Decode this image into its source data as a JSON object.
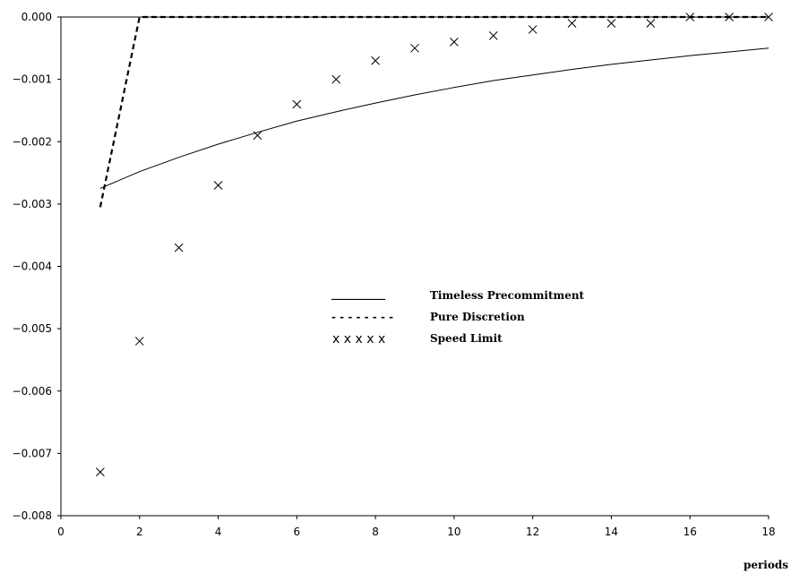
{
  "chart_data": {
    "type": "line",
    "title": "",
    "xlabel": "periods",
    "ylabel": "",
    "xlim": [
      0,
      18
    ],
    "ylim": [
      -0.008,
      0.0
    ],
    "x_ticks": [
      0,
      2,
      4,
      6,
      8,
      10,
      12,
      14,
      16,
      18
    ],
    "x_tick_labels": [
      "0",
      "2",
      "4",
      "6",
      "8",
      "10",
      "12",
      "14",
      "16",
      "18"
    ],
    "y_ticks": [
      0.0,
      -0.001,
      -0.002,
      -0.003,
      -0.004,
      -0.005,
      -0.006,
      -0.007,
      -0.008
    ],
    "y_tick_labels": [
      "0.000",
      "−0.001",
      "−0.002",
      "−0.003",
      "−0.004",
      "−0.005",
      "−0.006",
      "−0.007",
      "−0.008"
    ],
    "grid": false,
    "legend_position": "center",
    "series": [
      {
        "name": "Timeless Precommitment",
        "style": "solid",
        "x": [
          1,
          2,
          3,
          4,
          5,
          6,
          7,
          8,
          9,
          10,
          11,
          12,
          13,
          14,
          15,
          16,
          17,
          18
        ],
        "y": [
          -0.00275,
          -0.00248,
          -0.00225,
          -0.00204,
          -0.00185,
          -0.00167,
          -0.00152,
          -0.00138,
          -0.00125,
          -0.00113,
          -0.00102,
          -0.00093,
          -0.00084,
          -0.00076,
          -0.00069,
          -0.00062,
          -0.00056,
          -0.0005
        ]
      },
      {
        "name": "Pure Discretion",
        "style": "dashed",
        "x": [
          1,
          2,
          3,
          4,
          5,
          6,
          7,
          8,
          9,
          10,
          11,
          12,
          13,
          14,
          15,
          16,
          17,
          18
        ],
        "y": [
          -0.00305,
          0.0,
          0.0,
          0.0,
          0.0,
          0.0,
          0.0,
          0.0,
          0.0,
          0.0,
          0.0,
          0.0,
          0.0,
          0.0,
          0.0,
          0.0,
          0.0,
          0.0
        ]
      },
      {
        "name": "Speed Limit",
        "style": "markers-x",
        "x": [
          1,
          2,
          3,
          4,
          5,
          6,
          7,
          8,
          9,
          10,
          11,
          12,
          13,
          14,
          15,
          16,
          17,
          18
        ],
        "y": [
          -0.0073,
          -0.0052,
          -0.0037,
          -0.0027,
          -0.0019,
          -0.0014,
          -0.001,
          -0.0007,
          -0.0005,
          -0.0004,
          -0.0003,
          -0.0002,
          -0.0001,
          -0.0001,
          -0.0001,
          0.0,
          0.0,
          0.0
        ]
      }
    ],
    "legend": [
      {
        "label": "Timeless Precommitment",
        "sample": "__________"
      },
      {
        "label": "Pure Discretion",
        "sample": "- - - - - - - -"
      },
      {
        "label": "Speed Limit",
        "sample": "x x x x x"
      }
    ]
  }
}
